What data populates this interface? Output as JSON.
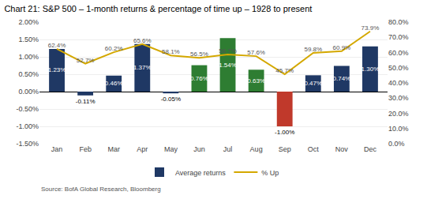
{
  "chart_data": {
    "type": "bar",
    "title": "Chart 21: S&P 500 – 1-month returns & percentage of time up – 1928 to present",
    "annotations": [
      "Source: BofA Global Research, Bloomberg"
    ],
    "categories": [
      "Jan",
      "Feb",
      "Mar",
      "Apr",
      "May",
      "Jun",
      "Jul",
      "Aug",
      "Sep",
      "Oct",
      "Nov",
      "Dec"
    ],
    "series": [
      {
        "name": "Average returns",
        "type": "bar",
        "colors": [
          "#1f3864",
          "#1f3864",
          "#1f3864",
          "#1f3864",
          "#1f3864",
          "#2e7d32",
          "#2e7d32",
          "#2e7d32",
          "#c0392b",
          "#1f3864",
          "#1f3864",
          "#1f3864"
        ],
        "values": [
          1.23,
          -0.11,
          0.46,
          1.37,
          -0.05,
          0.76,
          1.54,
          0.63,
          -1.0,
          0.47,
          0.74,
          1.3
        ],
        "value_labels": [
          "1.23%",
          "-0.11%",
          "0.46%",
          "1.37%",
          "-0.05%",
          "0.76%",
          "1.54%",
          "0.63%",
          "-1.00%",
          "0.47%",
          "0.74%",
          "1.30%"
        ]
      },
      {
        "name": "% Up",
        "type": "line",
        "axis": "y2",
        "color": "#d4a800",
        "values": [
          62.4,
          52.7,
          60.2,
          65.6,
          58.1,
          56.5,
          58.7,
          57.6,
          45.7,
          59.8,
          60.9,
          73.9
        ],
        "value_labels": [
          "62.4%",
          "52.7%",
          "60.2%",
          "65.6%",
          "58.1%",
          "56.5%",
          "58.7%",
          "57.6%",
          "45.7%",
          "59.8%",
          "60.9%",
          "73.9%"
        ]
      }
    ],
    "ylim": [
      -1.5,
      2.0
    ],
    "yticks": [
      {
        "value": -1.5,
        "label": "-1.50%"
      },
      {
        "value": -1.0,
        "label": "-1.00%"
      },
      {
        "value": -0.5,
        "label": "-0.50%"
      },
      {
        "value": 0.0,
        "label": "0.00%"
      },
      {
        "value": 0.5,
        "label": "0.50%"
      },
      {
        "value": 1.0,
        "label": "1.00%"
      },
      {
        "value": 1.5,
        "label": "1.50%"
      },
      {
        "value": 2.0,
        "label": "2.00%"
      }
    ],
    "y2lim": [
      0.0,
      80.0
    ],
    "y2ticks": [
      {
        "value": 0,
        "label": "0.0%"
      },
      {
        "value": 10,
        "label": "10.0%"
      },
      {
        "value": 20,
        "label": "20.0%"
      },
      {
        "value": 30,
        "label": "30.0%"
      },
      {
        "value": 40,
        "label": "40.0%"
      },
      {
        "value": 50,
        "label": "50.0%"
      },
      {
        "value": 60,
        "label": "60.0%"
      },
      {
        "value": 70,
        "label": "70.0%"
      },
      {
        "value": 80,
        "label": "80.0%"
      }
    ],
    "grid": true,
    "legend": "bottom",
    "data_labels": true
  }
}
